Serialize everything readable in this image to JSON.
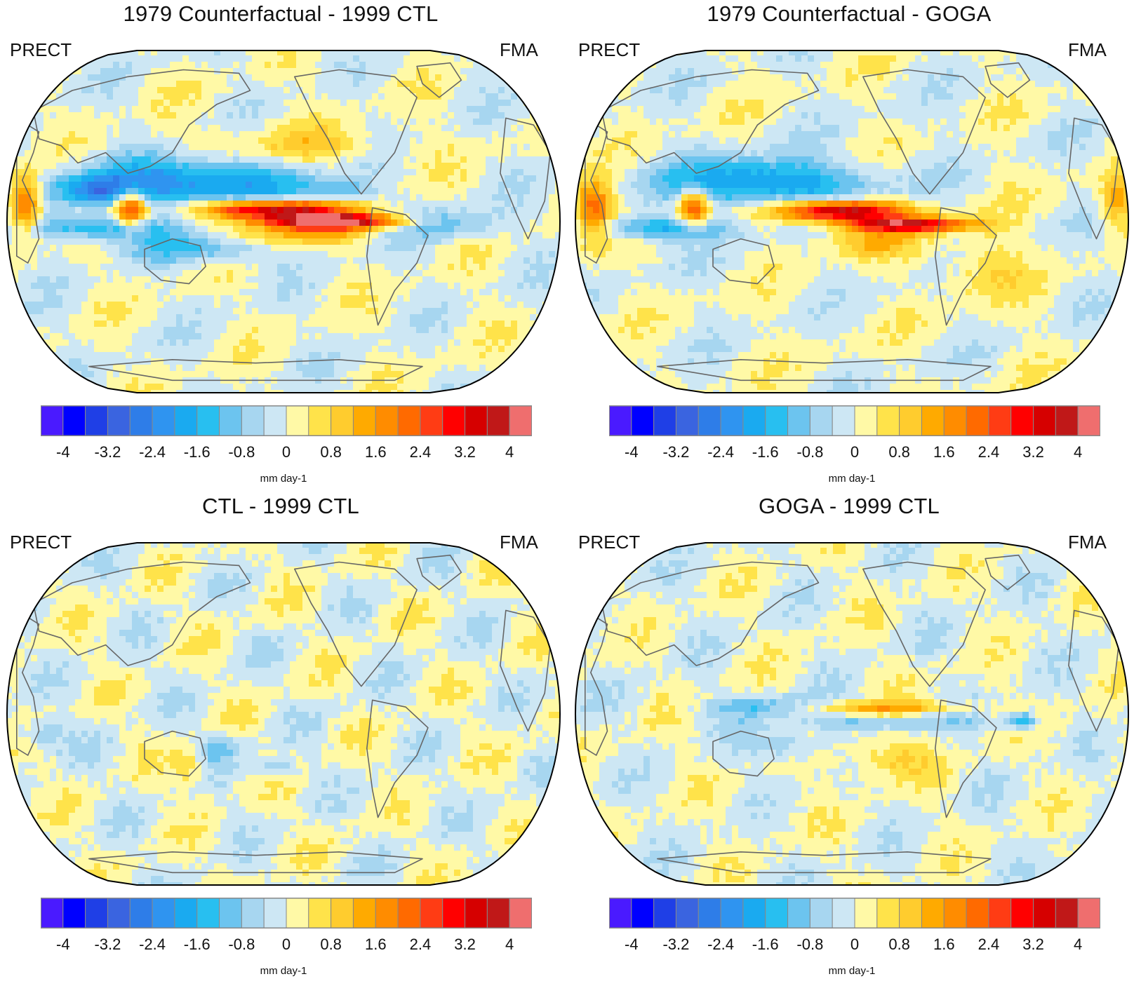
{
  "figure": {
    "variable_label": "PRECT",
    "season_label": "FMA",
    "units": "mm day-1",
    "colorbar": {
      "levels_labeled": [
        "-4",
        "-3.2",
        "-2.4",
        "-1.6",
        "-0.8",
        "0",
        "0.8",
        "1.6",
        "2.4",
        "3.2",
        "4"
      ],
      "colors": [
        "#4a1aff",
        "#0000ff",
        "#1f3fe6",
        "#3a64e0",
        "#2e7de8",
        "#2f94f0",
        "#1aaaf0",
        "#28bff0",
        "#6cc4ef",
        "#a7d6f0",
        "#cde7f4",
        "#fff9a6",
        "#ffe34a",
        "#ffcc2e",
        "#ffaa00",
        "#ff8c00",
        "#ff6a00",
        "#ff3c14",
        "#ff0000",
        "#d60000",
        "#c01818",
        "#ef6e6e"
      ]
    }
  },
  "panels": [
    {
      "id": "a",
      "title": "1979 Counterfactual - 1999 CTL",
      "variable": "PRECT",
      "season": "FMA"
    },
    {
      "id": "b",
      "title": "1979 Counterfactual - GOGA",
      "variable": "PRECT",
      "season": "FMA"
    },
    {
      "id": "c",
      "title": "CTL - 1999 CTL",
      "variable": "PRECT",
      "season": "FMA"
    },
    {
      "id": "d",
      "title": "GOGA - 1999 CTL",
      "variable": "PRECT",
      "season": "FMA"
    }
  ]
}
